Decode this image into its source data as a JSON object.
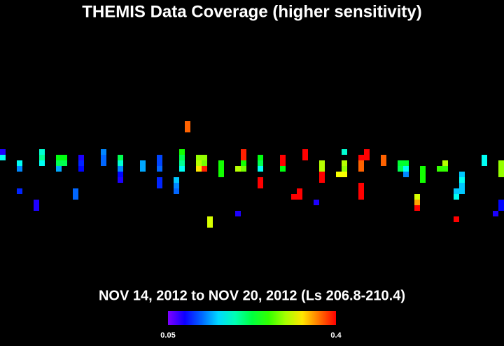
{
  "title": "THEMIS Data Coverage (higher sensitivity)",
  "subtitle": "NOV 14, 2012 to NOV 20, 2012 (Ls 206.8-210.4)",
  "colorbar": {
    "range": [
      0.05,
      0.4
    ]
  },
  "cells": [
    [
      0,
      17,
      0.08
    ],
    [
      0,
      13,
      0.17
    ],
    [
      12,
      9,
      0.17
    ],
    [
      12,
      5,
      0.13
    ],
    [
      12,
      -11,
      0.1
    ],
    [
      24,
      -19,
      0.08
    ],
    [
      24,
      -23,
      0.08
    ],
    [
      28,
      17,
      0.18
    ],
    [
      28,
      13,
      0.2
    ],
    [
      28,
      9,
      0.17
    ],
    [
      40,
      13,
      0.24
    ],
    [
      44,
      13,
      0.24
    ],
    [
      40,
      9,
      0.22
    ],
    [
      44,
      9,
      0.22
    ],
    [
      40,
      5,
      0.14
    ],
    [
      52,
      -11,
      0.12
    ],
    [
      52,
      -15,
      0.12
    ],
    [
      56,
      13,
      0.08
    ],
    [
      56,
      9,
      0.1
    ],
    [
      56,
      5,
      0.09
    ],
    [
      72,
      17,
      0.13
    ],
    [
      72,
      13,
      0.12
    ],
    [
      72,
      9,
      0.12
    ],
    [
      84,
      13,
      0.22
    ],
    [
      84,
      9,
      0.18
    ],
    [
      84,
      5,
      0.13
    ],
    [
      84,
      1,
      0.09
    ],
    [
      84,
      -3,
      0.08
    ],
    [
      100,
      9,
      0.14
    ],
    [
      100,
      5,
      0.14
    ],
    [
      112,
      13,
      0.11
    ],
    [
      112,
      9,
      0.11
    ],
    [
      112,
      5,
      0.12
    ],
    [
      112,
      -3,
      0.1
    ],
    [
      112,
      -7,
      0.1
    ],
    [
      124,
      -3,
      0.15
    ],
    [
      124,
      -7,
      0.13
    ],
    [
      124,
      -11,
      0.12
    ],
    [
      128,
      17,
      0.25
    ],
    [
      128,
      13,
      0.22
    ],
    [
      128,
      9,
      0.2
    ],
    [
      128,
      5,
      0.17
    ],
    [
      132,
      37,
      0.37
    ],
    [
      132,
      33,
      0.37
    ],
    [
      140,
      13,
      0.29
    ],
    [
      144,
      13,
      0.29
    ],
    [
      140,
      9,
      0.3
    ],
    [
      144,
      9,
      0.28
    ],
    [
      140,
      5,
      0.33
    ],
    [
      144,
      5,
      0.39
    ],
    [
      148,
      -31,
      0.31
    ],
    [
      148,
      -35,
      0.31
    ],
    [
      156,
      9,
      0.25
    ],
    [
      156,
      5,
      0.25
    ],
    [
      156,
      1,
      0.25
    ],
    [
      168,
      -27,
      0.08
    ],
    [
      168,
      5,
      0.3
    ],
    [
      172,
      5,
      0.28
    ],
    [
      172,
      9,
      0.25
    ],
    [
      172,
      17,
      0.39
    ],
    [
      172,
      13,
      0.39
    ],
    [
      184,
      13,
      0.24
    ],
    [
      184,
      9,
      0.22
    ],
    [
      184,
      5,
      0.17
    ],
    [
      184,
      -3,
      0.4
    ],
    [
      184,
      -7,
      0.4
    ],
    [
      200,
      13,
      0.4
    ],
    [
      200,
      9,
      0.4
    ],
    [
      200,
      5,
      0.24
    ],
    [
      208,
      -15,
      0.4
    ],
    [
      212,
      -15,
      0.4
    ],
    [
      212,
      -11,
      0.4
    ],
    [
      216,
      17,
      0.4
    ],
    [
      216,
      13,
      0.4
    ],
    [
      224,
      -19,
      0.08
    ],
    [
      228,
      9,
      0.3
    ],
    [
      228,
      5,
      0.3
    ],
    [
      228,
      1,
      0.4
    ],
    [
      228,
      -3,
      0.4
    ],
    [
      240,
      1,
      0.32
    ],
    [
      244,
      1,
      0.32
    ],
    [
      244,
      9,
      0.3
    ],
    [
      244,
      5,
      0.29
    ],
    [
      244,
      17,
      0.18
    ],
    [
      256,
      13,
      0.4
    ],
    [
      260,
      13,
      0.4
    ],
    [
      260,
      17,
      0.4
    ],
    [
      256,
      9,
      0.37
    ],
    [
      256,
      5,
      0.37
    ],
    [
      256,
      -7,
      0.4
    ],
    [
      256,
      -11,
      0.4
    ],
    [
      256,
      -15,
      0.4
    ],
    [
      272,
      13,
      0.37
    ],
    [
      272,
      9,
      0.37
    ],
    [
      284,
      9,
      0.23
    ],
    [
      288,
      9,
      0.23
    ],
    [
      284,
      5,
      0.22
    ],
    [
      288,
      5,
      0.17
    ],
    [
      288,
      1,
      0.13
    ],
    [
      296,
      -15,
      0.31
    ],
    [
      296,
      -19,
      0.35
    ],
    [
      296,
      -23,
      0.4
    ],
    [
      300,
      5,
      0.25
    ],
    [
      300,
      1,
      0.25
    ],
    [
      300,
      -3,
      0.25
    ],
    [
      312,
      5,
      0.26
    ],
    [
      316,
      5,
      0.26
    ],
    [
      316,
      9,
      0.3
    ],
    [
      324,
      -31,
      0.4
    ],
    [
      324,
      -11,
      0.15
    ],
    [
      328,
      -11,
      0.15
    ],
    [
      324,
      -15,
      0.17
    ],
    [
      328,
      -7,
      0.15
    ],
    [
      328,
      1,
      0.15
    ],
    [
      328,
      -3,
      0.17
    ],
    [
      344,
      13,
      0.17
    ],
    [
      344,
      9,
      0.17
    ],
    [
      356,
      9,
      0.29
    ],
    [
      356,
      5,
      0.29
    ],
    [
      356,
      1,
      0.29
    ],
    [
      356,
      -19,
      0.09
    ],
    [
      356,
      -23,
      0.09
    ],
    [
      352,
      -27,
      0.08
    ]
  ]
}
